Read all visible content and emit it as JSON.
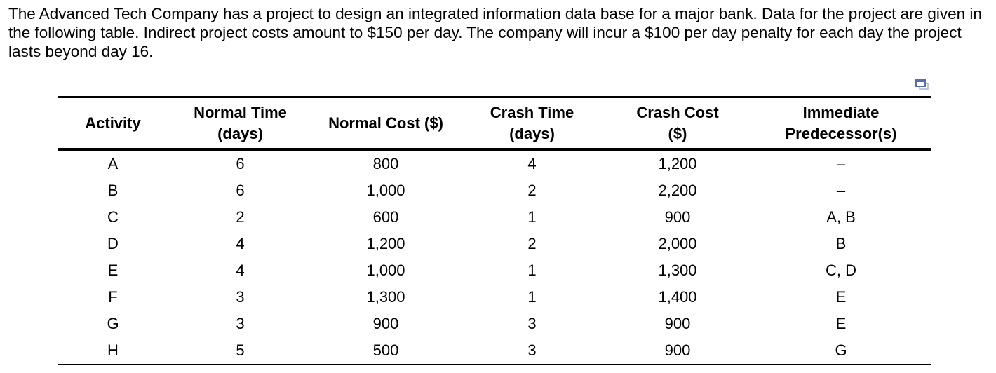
{
  "intro_text": "The Advanced Tech Company has a project to design an integrated information data base for a major bank. Data for the project are given in the following table. Indirect project costs amount to $150 per day. The company will incur a $100 per day penalty for each day the project lasts beyond day 16.",
  "icon": "copy-window-icon",
  "table": {
    "headers": [
      [
        "Activity",
        ""
      ],
      [
        "Normal Time",
        "(days)"
      ],
      [
        "Normal Cost ($)",
        ""
      ],
      [
        "Crash Time",
        "(days)"
      ],
      [
        "Crash Cost",
        "($)"
      ],
      [
        "Immediate",
        "Predecessor(s)"
      ]
    ],
    "rows": [
      [
        "A",
        "6",
        "800",
        "4",
        "1,200",
        "–"
      ],
      [
        "B",
        "6",
        "1,000",
        "2",
        "2,200",
        "–"
      ],
      [
        "C",
        "2",
        "600",
        "1",
        "900",
        "A, B"
      ],
      [
        "D",
        "4",
        "1,200",
        "2",
        "2,000",
        "B"
      ],
      [
        "E",
        "4",
        "1,000",
        "1",
        "1,300",
        "C, D"
      ],
      [
        "F",
        "3",
        "1,300",
        "1",
        "1,400",
        "E"
      ],
      [
        "G",
        "3",
        "900",
        "3",
        "900",
        "E"
      ],
      [
        "H",
        "5",
        "500",
        "3",
        "900",
        "G"
      ]
    ]
  }
}
